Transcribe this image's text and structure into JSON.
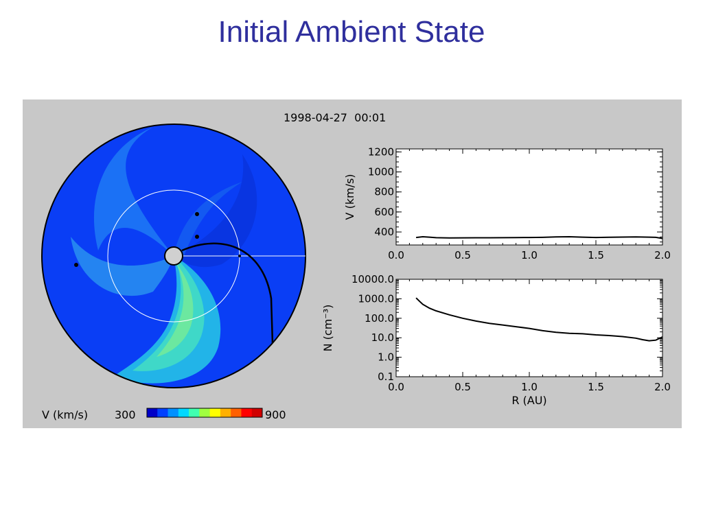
{
  "slide": {
    "title": "Initial Ambient State"
  },
  "figure": {
    "timestamp": "1998-04-27  00:01",
    "colorbar": {
      "label": "V (km/s)",
      "min_label": "300",
      "max_label": "900",
      "colors": [
        "#0000c8",
        "#0040ff",
        "#0090ff",
        "#00d8ff",
        "#40ffb0",
        "#a0ff40",
        "#ffff00",
        "#ffb000",
        "#ff6000",
        "#ff0000",
        "#d00000"
      ]
    },
    "disk": {
      "background_color": "#0a3ef5",
      "observer_marker_radius_au": 1.0
    }
  },
  "chart_data": [
    {
      "type": "line",
      "name": "velocity-profile",
      "xlabel": "",
      "ylabel": "V (km/s)",
      "xlim": [
        0.0,
        2.0
      ],
      "ylim": [
        270,
        1230
      ],
      "xticks": [
        "0.0",
        "0.5",
        "1.0",
        "1.5",
        "2.0"
      ],
      "yticks": [
        {
          "value": 400,
          "label": "400"
        },
        {
          "value": 600,
          "label": "600"
        },
        {
          "value": 800,
          "label": "800"
        },
        {
          "value": 1000,
          "label": "1000"
        },
        {
          "value": 1200,
          "label": "1200"
        }
      ],
      "x": [
        0.15,
        0.2,
        0.25,
        0.3,
        0.4,
        0.5,
        0.6,
        0.7,
        0.8,
        0.9,
        1.0,
        1.1,
        1.2,
        1.3,
        1.4,
        1.5,
        1.6,
        1.7,
        1.8,
        1.9,
        1.95,
        2.0
      ],
      "y": [
        345,
        352,
        348,
        343,
        340,
        341,
        342,
        342,
        343,
        344,
        345,
        346,
        350,
        352,
        348,
        345,
        347,
        349,
        350,
        348,
        346,
        335
      ]
    },
    {
      "type": "line",
      "name": "density-profile",
      "xlabel": "R (AU)",
      "ylabel": "N (cm⁻³)",
      "xlim": [
        0.0,
        2.0
      ],
      "yscale": "log",
      "ylim": [
        0.1,
        10000
      ],
      "xticks": [
        "0.0",
        "0.5",
        "1.0",
        "1.5",
        "2.0"
      ],
      "yticks": [
        {
          "value": 0.1,
          "label": "0.1"
        },
        {
          "value": 1,
          "label": "1.0"
        },
        {
          "value": 10,
          "label": "10.0"
        },
        {
          "value": 100,
          "label": "100.0"
        },
        {
          "value": 1000,
          "label": "1000.0"
        },
        {
          "value": 10000,
          "label": "10000.0"
        }
      ],
      "x": [
        0.15,
        0.18,
        0.2,
        0.25,
        0.3,
        0.4,
        0.5,
        0.6,
        0.7,
        0.8,
        0.9,
        1.0,
        1.1,
        1.2,
        1.3,
        1.4,
        1.5,
        1.6,
        1.7,
        1.8,
        1.85,
        1.9,
        1.95,
        2.0
      ],
      "y": [
        1100,
        700,
        520,
        330,
        240,
        150,
        100,
        72,
        55,
        45,
        37,
        30,
        23,
        19,
        17,
        16,
        14,
        13,
        11.5,
        9.5,
        8,
        7,
        7.5,
        11
      ]
    }
  ]
}
